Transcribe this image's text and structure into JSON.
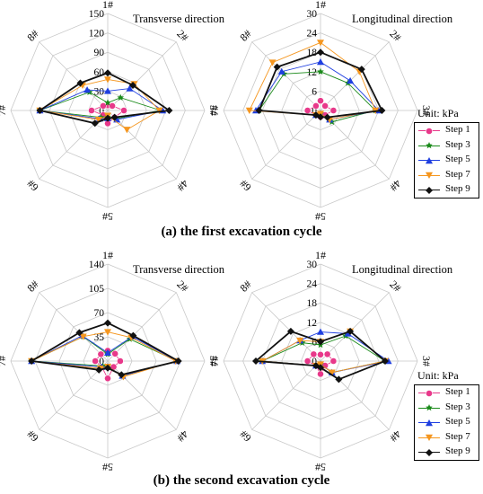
{
  "captions": {
    "a": "(a) the first excavation cycle",
    "b": "(b) the second excavation cycle"
  },
  "legend": {
    "title": "Unit: kPa",
    "entries": [
      {
        "label": "Step 1",
        "color": "#e8388a",
        "marker": "circle"
      },
      {
        "label": "Step 3",
        "color": "#1a8a1a",
        "marker": "star"
      },
      {
        "label": "Step 5",
        "color": "#1f3fe0",
        "marker": "triangle-up"
      },
      {
        "label": "Step 7",
        "color": "#f5961e",
        "marker": "triangle-down"
      },
      {
        "label": "Step 9",
        "color": "#111111",
        "marker": "diamond"
      }
    ]
  },
  "chart_data": [
    {
      "type": "radar",
      "title": "Transverse direction",
      "categories": [
        "1#",
        "2#",
        "3#",
        "4#",
        "5#",
        "6#",
        "7#",
        "8#"
      ],
      "rticks": [
        "0",
        "30",
        "60",
        "90",
        "120",
        "150"
      ],
      "rlim": [
        0,
        150
      ],
      "series": [
        {
          "name": "Step 1",
          "values": [
            8,
            10,
            25,
            15,
            20,
            10,
            25,
            10
          ]
        },
        {
          "name": "Step 3",
          "values": [
            12,
            28,
            82,
            18,
            10,
            15,
            105,
            40
          ]
        },
        {
          "name": "Step 5",
          "values": [
            30,
            48,
            85,
            20,
            12,
            18,
            105,
            45
          ]
        },
        {
          "name": "Step 7",
          "values": [
            48,
            58,
            80,
            42,
            8,
            20,
            105,
            55
          ]
        },
        {
          "name": "Step 9",
          "values": [
            58,
            55,
            95,
            15,
            12,
            28,
            105,
            60
          ]
        }
      ]
    },
    {
      "type": "radar",
      "title": "Longitudinal direction",
      "categories": [
        "1#",
        "2#",
        "3#",
        "4#",
        "5#",
        "6#",
        "7#",
        "8#"
      ],
      "rticks": [
        "0",
        "6",
        "12",
        "18",
        "24",
        "30"
      ],
      "rlim": [
        0,
        30
      ],
      "series": [
        {
          "name": "Step 1",
          "values": [
            3,
            2,
            4,
            2,
            2,
            2,
            4,
            2
          ]
        },
        {
          "name": "Step 3",
          "values": [
            12,
            12,
            17,
            5,
            1,
            2,
            19,
            16
          ]
        },
        {
          "name": "Step 5",
          "values": [
            15,
            13,
            18,
            4,
            1,
            2,
            20,
            17
          ]
        },
        {
          "name": "Step 7",
          "values": [
            21,
            17,
            17,
            4,
            1,
            2,
            22,
            21
          ]
        },
        {
          "name": "Step 9",
          "values": [
            18,
            18,
            19,
            3,
            2,
            2,
            19,
            19
          ]
        }
      ]
    },
    {
      "type": "radar",
      "title": "Transverse direction",
      "categories": [
        "1#",
        "2#",
        "3#",
        "4#",
        "5#",
        "6#",
        "7#",
        "8#"
      ],
      "rticks": [
        "0",
        "35",
        "70",
        "105",
        "140"
      ],
      "rlim": [
        0,
        140
      ],
      "series": [
        {
          "name": "Step 1",
          "values": [
            15,
            15,
            18,
            12,
            25,
            12,
            18,
            14
          ]
        },
        {
          "name": "Step 3",
          "values": [
            10,
            45,
            100,
            30,
            8,
            10,
            110,
            50
          ]
        },
        {
          "name": "Step 5",
          "values": [
            12,
            50,
            100,
            30,
            8,
            12,
            110,
            52
          ]
        },
        {
          "name": "Step 7",
          "values": [
            42,
            48,
            98,
            32,
            8,
            15,
            110,
            50
          ]
        },
        {
          "name": "Step 9",
          "values": [
            55,
            52,
            102,
            28,
            10,
            18,
            110,
            58
          ]
        }
      ]
    },
    {
      "type": "radar",
      "title": "Longitudinal direction",
      "categories": [
        "1#",
        "2#",
        "3#",
        "4#",
        "5#",
        "6#",
        "7#",
        "8#"
      ],
      "rticks": [
        "0",
        "6",
        "12",
        "18",
        "24",
        "30"
      ],
      "rlim": [
        0,
        30
      ],
      "series": [
        {
          "name": "Step 1",
          "values": [
            2,
            3,
            4,
            2,
            4,
            2,
            4,
            3
          ]
        },
        {
          "name": "Step 3",
          "values": [
            5,
            11,
            20,
            5,
            1,
            2,
            18,
            8
          ]
        },
        {
          "name": "Step 5",
          "values": [
            9,
            12,
            21,
            5,
            1,
            2,
            18,
            9
          ]
        },
        {
          "name": "Step 7",
          "values": [
            6,
            13,
            20,
            5,
            1,
            2,
            18,
            9
          ]
        },
        {
          "name": "Step 9",
          "values": [
            6,
            13,
            20,
            8,
            2,
            2,
            20,
            13
          ]
        }
      ]
    }
  ]
}
